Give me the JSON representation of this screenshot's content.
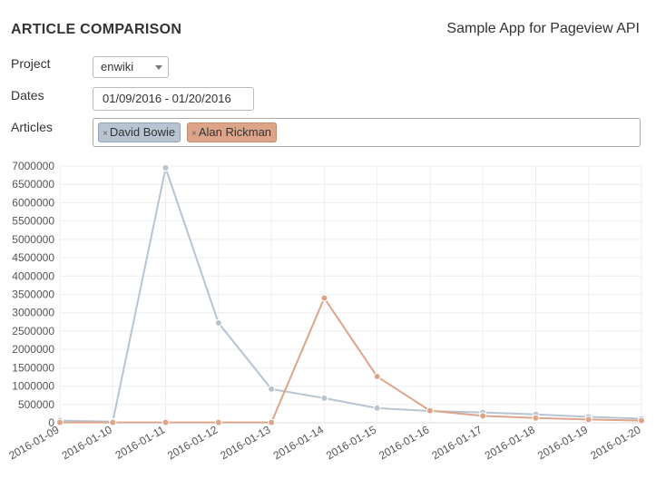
{
  "header": {
    "title": "ARTICLE COMPARISON",
    "subtitle": "Sample App for Pageview API"
  },
  "form": {
    "project_label": "Project",
    "project_value": "enwiki",
    "dates_label": "Dates",
    "dates_value": "01/09/2016 - 01/20/2016",
    "articles_label": "Articles",
    "tag_remove_glyph": "×",
    "articles": [
      {
        "name": "David Bowie",
        "color": "#b8c4d2"
      },
      {
        "name": "Alan Rickman",
        "color": "#dca489"
      }
    ]
  },
  "chart_data": {
    "type": "line",
    "x": [
      "2016-01-09",
      "2016-01-10",
      "2016-01-11",
      "2016-01-12",
      "2016-01-13",
      "2016-01-14",
      "2016-01-15",
      "2016-01-16",
      "2016-01-17",
      "2016-01-18",
      "2016-01-19",
      "2016-01-20"
    ],
    "ylim": [
      0,
      7000000
    ],
    "yticks": [
      0,
      500000,
      1000000,
      1500000,
      2000000,
      2500000,
      3000000,
      3500000,
      4000000,
      4500000,
      5000000,
      5500000,
      6000000,
      6500000,
      7000000
    ],
    "grid": true,
    "series": [
      {
        "name": "David Bowie",
        "color": "#b8c4d2",
        "values": [
          60000,
          30000,
          6950000,
          2720000,
          920000,
          670000,
          400000,
          320000,
          280000,
          230000,
          160000,
          110000
        ]
      },
      {
        "name": "Alan Rickman",
        "color": "#dca489",
        "values": [
          10000,
          10000,
          8000,
          8000,
          8000,
          3400000,
          1260000,
          330000,
          190000,
          130000,
          90000,
          60000
        ]
      }
    ]
  }
}
